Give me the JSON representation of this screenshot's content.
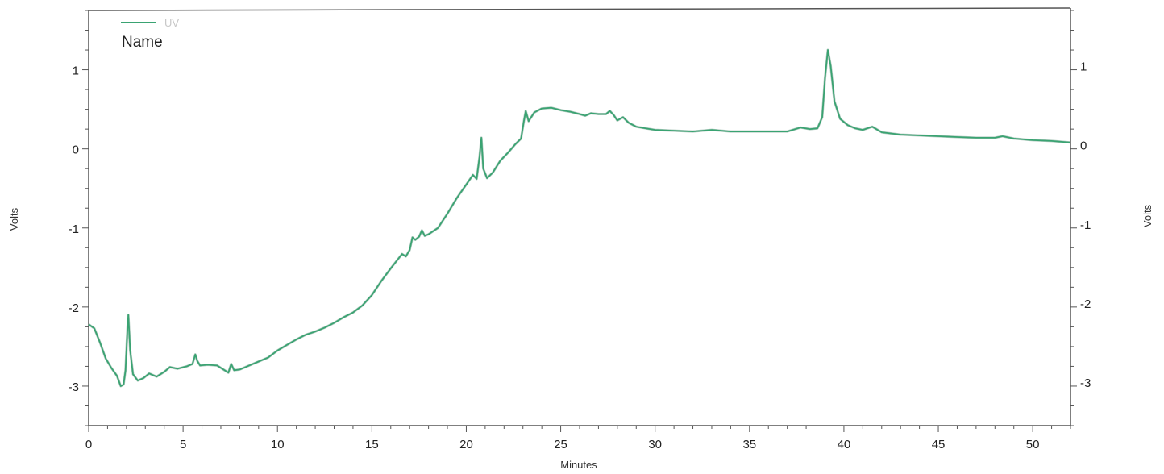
{
  "chart_data": {
    "type": "line",
    "xlabel": "Minutes",
    "ylabel": "Volts",
    "ylabel_right": "Volts",
    "xlim": [
      0,
      52
    ],
    "ylim": [
      -3.5,
      1.75
    ],
    "x_ticks": [
      0,
      5,
      10,
      15,
      20,
      25,
      30,
      35,
      40,
      45,
      50
    ],
    "y_ticks": [
      -3,
      -2,
      -1,
      0,
      1
    ],
    "x_tick_labels": [
      "0",
      "5",
      "10",
      "15",
      "20",
      "25",
      "30",
      "35",
      "40",
      "45",
      "50"
    ],
    "y_tick_labels": [
      "-3",
      "-2",
      "-1",
      "0",
      "1"
    ],
    "grid": false,
    "legend_placement": "top-left",
    "legend": {
      "label": "UV",
      "name_heading": "Name"
    },
    "series": [
      {
        "name": "UV",
        "color": "#3aa372",
        "points": [
          [
            0.0,
            -2.22
          ],
          [
            0.3,
            -2.27
          ],
          [
            0.6,
            -2.45
          ],
          [
            0.9,
            -2.65
          ],
          [
            1.2,
            -2.77
          ],
          [
            1.5,
            -2.87
          ],
          [
            1.7,
            -3.0
          ],
          [
            1.85,
            -2.98
          ],
          [
            1.95,
            -2.8
          ],
          [
            2.05,
            -2.3
          ],
          [
            2.1,
            -2.1
          ],
          [
            2.2,
            -2.55
          ],
          [
            2.35,
            -2.85
          ],
          [
            2.6,
            -2.93
          ],
          [
            2.9,
            -2.9
          ],
          [
            3.2,
            -2.84
          ],
          [
            3.6,
            -2.88
          ],
          [
            4.0,
            -2.82
          ],
          [
            4.3,
            -2.76
          ],
          [
            4.7,
            -2.78
          ],
          [
            5.2,
            -2.75
          ],
          [
            5.5,
            -2.72
          ],
          [
            5.65,
            -2.6
          ],
          [
            5.75,
            -2.68
          ],
          [
            5.9,
            -2.74
          ],
          [
            6.3,
            -2.73
          ],
          [
            6.8,
            -2.74
          ],
          [
            7.2,
            -2.8
          ],
          [
            7.4,
            -2.83
          ],
          [
            7.55,
            -2.72
          ],
          [
            7.7,
            -2.8
          ],
          [
            8.0,
            -2.79
          ],
          [
            8.5,
            -2.74
          ],
          [
            9.0,
            -2.69
          ],
          [
            9.5,
            -2.64
          ],
          [
            10.0,
            -2.55
          ],
          [
            10.5,
            -2.48
          ],
          [
            11.0,
            -2.41
          ],
          [
            11.5,
            -2.35
          ],
          [
            12.0,
            -2.31
          ],
          [
            12.5,
            -2.26
          ],
          [
            13.0,
            -2.2
          ],
          [
            13.5,
            -2.13
          ],
          [
            14.0,
            -2.07
          ],
          [
            14.5,
            -1.98
          ],
          [
            15.0,
            -1.85
          ],
          [
            15.5,
            -1.67
          ],
          [
            16.0,
            -1.51
          ],
          [
            16.4,
            -1.39
          ],
          [
            16.6,
            -1.33
          ],
          [
            16.8,
            -1.36
          ],
          [
            17.0,
            -1.28
          ],
          [
            17.15,
            -1.12
          ],
          [
            17.3,
            -1.15
          ],
          [
            17.5,
            -1.11
          ],
          [
            17.65,
            -1.03
          ],
          [
            17.8,
            -1.1
          ],
          [
            18.0,
            -1.08
          ],
          [
            18.5,
            -1.0
          ],
          [
            19.0,
            -0.82
          ],
          [
            19.5,
            -0.62
          ],
          [
            20.0,
            -0.45
          ],
          [
            20.35,
            -0.33
          ],
          [
            20.55,
            -0.38
          ],
          [
            20.7,
            -0.1
          ],
          [
            20.8,
            0.14
          ],
          [
            20.9,
            -0.25
          ],
          [
            21.1,
            -0.37
          ],
          [
            21.4,
            -0.3
          ],
          [
            21.8,
            -0.15
          ],
          [
            22.2,
            -0.05
          ],
          [
            22.6,
            0.06
          ],
          [
            22.9,
            0.13
          ],
          [
            23.05,
            0.35
          ],
          [
            23.15,
            0.48
          ],
          [
            23.3,
            0.35
          ],
          [
            23.6,
            0.46
          ],
          [
            24.0,
            0.51
          ],
          [
            24.5,
            0.52
          ],
          [
            25.0,
            0.49
          ],
          [
            25.5,
            0.47
          ],
          [
            26.0,
            0.44
          ],
          [
            26.3,
            0.42
          ],
          [
            26.6,
            0.45
          ],
          [
            27.0,
            0.44
          ],
          [
            27.4,
            0.44
          ],
          [
            27.6,
            0.48
          ],
          [
            27.8,
            0.43
          ],
          [
            28.0,
            0.36
          ],
          [
            28.3,
            0.4
          ],
          [
            28.6,
            0.33
          ],
          [
            29.0,
            0.28
          ],
          [
            29.5,
            0.26
          ],
          [
            30.0,
            0.24
          ],
          [
            31.0,
            0.23
          ],
          [
            32.0,
            0.22
          ],
          [
            33.0,
            0.24
          ],
          [
            34.0,
            0.22
          ],
          [
            35.0,
            0.22
          ],
          [
            36.0,
            0.22
          ],
          [
            37.0,
            0.22
          ],
          [
            37.7,
            0.27
          ],
          [
            38.2,
            0.25
          ],
          [
            38.6,
            0.26
          ],
          [
            38.85,
            0.4
          ],
          [
            39.0,
            0.9
          ],
          [
            39.15,
            1.25
          ],
          [
            39.3,
            1.05
          ],
          [
            39.5,
            0.6
          ],
          [
            39.8,
            0.38
          ],
          [
            40.2,
            0.3
          ],
          [
            40.6,
            0.26
          ],
          [
            41.0,
            0.24
          ],
          [
            41.5,
            0.28
          ],
          [
            42.0,
            0.21
          ],
          [
            43.0,
            0.18
          ],
          [
            44.0,
            0.17
          ],
          [
            45.0,
            0.16
          ],
          [
            46.0,
            0.15
          ],
          [
            47.0,
            0.14
          ],
          [
            48.0,
            0.14
          ],
          [
            48.4,
            0.16
          ],
          [
            49.0,
            0.13
          ],
          [
            50.0,
            0.11
          ],
          [
            51.0,
            0.1
          ],
          [
            52.0,
            0.08
          ]
        ]
      }
    ]
  }
}
